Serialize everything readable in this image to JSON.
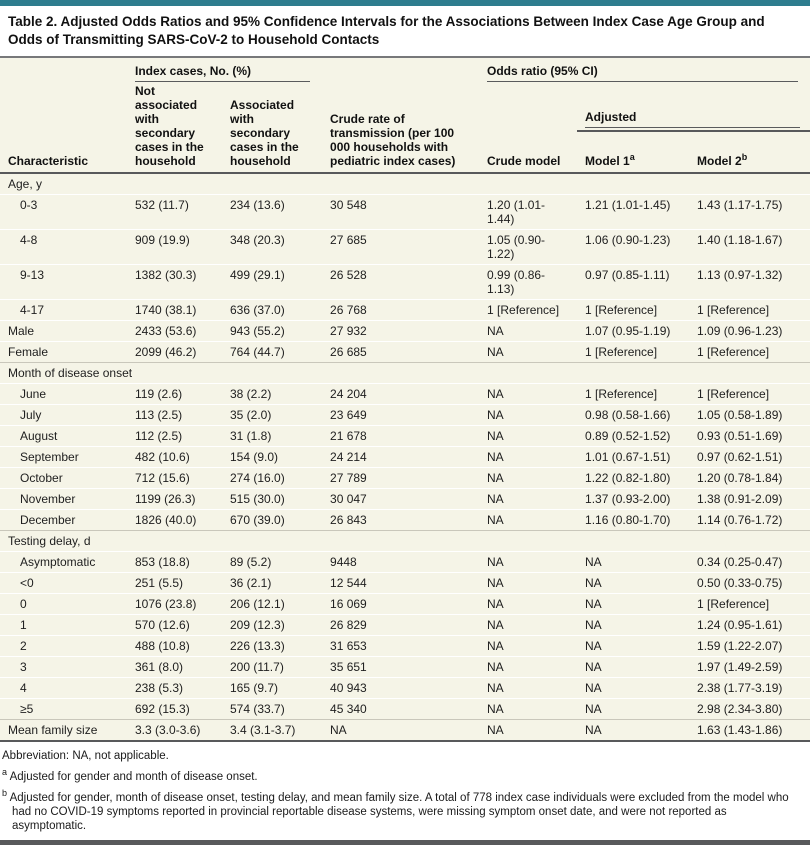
{
  "colors": {
    "accent_teal": "#2e7d8e",
    "table_background": "#f5f4e7",
    "rule_dark": "#58595b",
    "rule_gray": "#77787a",
    "section_line": "#c9c7bb"
  },
  "title": "Table 2. Adjusted Odds Ratios and 95% Confidence Intervals for the Associations Between Index Case Age Group and Odds of Transmitting SARS-CoV-2 to Household Contacts",
  "header": {
    "group_index_cases": "Index cases, No. (%)",
    "group_odds_ratio": "Odds ratio (95% CI)",
    "characteristic": "Characteristic",
    "not_associated": "Not associated with secondary cases in the household",
    "associated": "Associated with secondary cases in the household",
    "crude_rate": "Crude rate of transmission (per 100 000 households with pediatric index cases)",
    "crude_model": "Crude model",
    "adjusted": "Adjusted",
    "model1": "Model 1",
    "model1_sup": "a",
    "model2": "Model 2",
    "model2_sup": "b"
  },
  "rows": [
    {
      "type": "section",
      "label": "Age, y"
    },
    {
      "type": "data",
      "indent": true,
      "label": "0-3",
      "cells": [
        "532 (11.7)",
        "234 (13.6)",
        "30 548",
        "1.20 (1.01-1.44)",
        "1.21 (1.01-1.45)",
        "1.43 (1.17-1.75)"
      ]
    },
    {
      "type": "data",
      "indent": true,
      "label": "4-8",
      "cells": [
        "909 (19.9)",
        "348 (20.3)",
        "27 685",
        "1.05 (0.90-1.22)",
        "1.06 (0.90-1.23)",
        "1.40 (1.18-1.67)"
      ]
    },
    {
      "type": "data",
      "indent": true,
      "label": "9-13",
      "cells": [
        "1382 (30.3)",
        "499 (29.1)",
        "26 528",
        "0.99 (0.86-1.13)",
        "0.97 (0.85-1.11)",
        "1.13 (0.97-1.32)"
      ]
    },
    {
      "type": "data",
      "indent": true,
      "label": "4-17",
      "cells": [
        "1740 (38.1)",
        "636 (37.0)",
        "26 768",
        "1 [Reference]",
        "1 [Reference]",
        "1 [Reference]"
      ]
    },
    {
      "type": "data",
      "indent": false,
      "label": "Male",
      "cells": [
        "2433 (53.6)",
        "943 (55.2)",
        "27 932",
        "NA",
        "1.07 (0.95-1.19)",
        "1.09 (0.96-1.23)"
      ]
    },
    {
      "type": "data",
      "indent": false,
      "label": "Female",
      "cells": [
        "2099 (46.2)",
        "764 (44.7)",
        "26 685",
        "NA",
        "1 [Reference]",
        "1 [Reference]"
      ]
    },
    {
      "type": "section",
      "label": "Month of disease onset"
    },
    {
      "type": "data",
      "indent": true,
      "label": "June",
      "cells": [
        "119 (2.6)",
        "38 (2.2)",
        "24 204",
        "NA",
        "1 [Reference]",
        "1 [Reference]"
      ]
    },
    {
      "type": "data",
      "indent": true,
      "label": "July",
      "cells": [
        "113 (2.5)",
        "35 (2.0)",
        "23 649",
        "NA",
        "0.98 (0.58-1.66)",
        "1.05 (0.58-1.89)"
      ]
    },
    {
      "type": "data",
      "indent": true,
      "label": "August",
      "cells": [
        "112 (2.5)",
        "31 (1.8)",
        "21 678",
        "NA",
        "0.89 (0.52-1.52)",
        "0.93 (0.51-1.69)"
      ]
    },
    {
      "type": "data",
      "indent": true,
      "label": "September",
      "cells": [
        "482 (10.6)",
        "154 (9.0)",
        "24 214",
        "NA",
        "1.01 (0.67-1.51)",
        "0.97 (0.62-1.51)"
      ]
    },
    {
      "type": "data",
      "indent": true,
      "label": "October",
      "cells": [
        "712 (15.6)",
        "274 (16.0)",
        "27 789",
        "NA",
        "1.22 (0.82-1.80)",
        "1.20 (0.78-1.84)"
      ]
    },
    {
      "type": "data",
      "indent": true,
      "label": "November",
      "cells": [
        "1199 (26.3)",
        "515 (30.0)",
        "30 047",
        "NA",
        "1.37 (0.93-2.00)",
        "1.38 (0.91-2.09)"
      ]
    },
    {
      "type": "data",
      "indent": true,
      "label": "December",
      "cells": [
        "1826 (40.0)",
        "670 (39.0)",
        "26 843",
        "NA",
        "1.16 (0.80-1.70)",
        "1.14 (0.76-1.72)"
      ]
    },
    {
      "type": "section",
      "label": "Testing delay, d"
    },
    {
      "type": "data",
      "indent": true,
      "label": "Asymptomatic",
      "cells": [
        "853 (18.8)",
        "89 (5.2)",
        "9448",
        "NA",
        "NA",
        "0.34 (0.25-0.47)"
      ]
    },
    {
      "type": "data",
      "indent": true,
      "label": "<0",
      "cells": [
        "251 (5.5)",
        "36 (2.1)",
        "12 544",
        "NA",
        "NA",
        "0.50 (0.33-0.75)"
      ]
    },
    {
      "type": "data",
      "indent": true,
      "label": "0",
      "cells": [
        "1076 (23.8)",
        "206 (12.1)",
        "16 069",
        "NA",
        "NA",
        "1 [Reference]"
      ]
    },
    {
      "type": "data",
      "indent": true,
      "label": "1",
      "cells": [
        "570 (12.6)",
        "209 (12.3)",
        "26 829",
        "NA",
        "NA",
        "1.24 (0.95-1.61)"
      ]
    },
    {
      "type": "data",
      "indent": true,
      "label": "2",
      "cells": [
        "488 (10.8)",
        "226 (13.3)",
        "31 653",
        "NA",
        "NA",
        "1.59 (1.22-2.07)"
      ]
    },
    {
      "type": "data",
      "indent": true,
      "label": "3",
      "cells": [
        "361 (8.0)",
        "200 (11.7)",
        "35 651",
        "NA",
        "NA",
        "1.97 (1.49-2.59)"
      ]
    },
    {
      "type": "data",
      "indent": true,
      "label": "4",
      "cells": [
        "238 (5.3)",
        "165 (9.7)",
        "40 943",
        "NA",
        "NA",
        "2.38 (1.77-3.19)"
      ]
    },
    {
      "type": "data",
      "indent": true,
      "label": "≥5",
      "cells": [
        "692 (15.3)",
        "574 (33.7)",
        "45 340",
        "NA",
        "NA",
        "2.98 (2.34-3.80)"
      ]
    },
    {
      "type": "data",
      "indent": false,
      "block": true,
      "label": "Mean family size",
      "cells": [
        "3.3 (3.0-3.6)",
        "3.4 (3.1-3.7)",
        "NA",
        "NA",
        "NA",
        "1.63 (1.43-1.86)"
      ]
    }
  ],
  "footnotes": {
    "abbreviation": "Abbreviation: NA, not applicable.",
    "a_marker": "a",
    "a_text": "Adjusted for gender and month of disease onset.",
    "b_marker": "b",
    "b_text": "Adjusted for gender, month of disease onset, testing delay, and mean family size. A total of 778 index case individuals were excluded from the model who had no COVID-19 symptoms reported in provincial reportable disease systems, were missing symptom onset date, and were not reported as asymptomatic."
  }
}
